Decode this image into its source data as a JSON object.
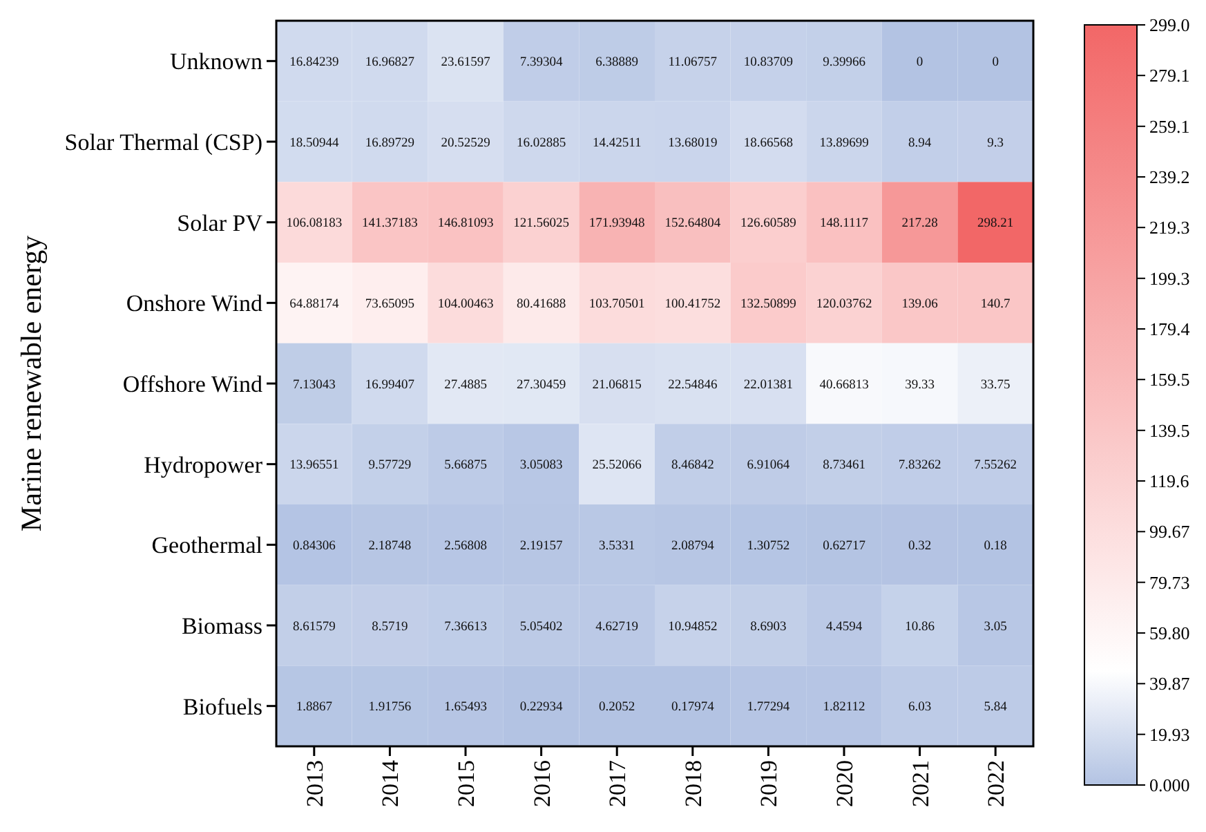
{
  "chart_data": {
    "type": "heatmap",
    "ylabel": "Marine renewable energy",
    "categories": [
      "2013",
      "2014",
      "2015",
      "2016",
      "2017",
      "2018",
      "2019",
      "2020",
      "2021",
      "2022"
    ],
    "y_categories": [
      "Unknown",
      "Solar Thermal (CSP)",
      "Solar PV",
      "Onshore Wind",
      "Offshore Wind",
      "Hydropower",
      "Geothermal",
      "Biomass",
      "Biofuels"
    ],
    "cells": [
      [
        16.84239,
        16.96827,
        23.61597,
        7.39304,
        6.38889,
        11.06757,
        10.83709,
        9.39966,
        0,
        0
      ],
      [
        18.50944,
        16.89729,
        20.52529,
        16.02885,
        14.42511,
        13.68019,
        18.66568,
        13.89699,
        8.94,
        9.3
      ],
      [
        106.08183,
        141.37183,
        146.81093,
        121.56025,
        171.93948,
        152.64804,
        126.60589,
        148.1117,
        217.28,
        298.21
      ],
      [
        64.88174,
        73.65095,
        104.00463,
        80.41688,
        103.70501,
        100.41752,
        132.50899,
        120.03762,
        139.06,
        140.7
      ],
      [
        7.13043,
        16.99407,
        27.4885,
        27.30459,
        21.06815,
        22.54846,
        22.01381,
        40.66813,
        39.33,
        33.75
      ],
      [
        13.96551,
        9.57729,
        5.66875,
        3.05083,
        25.52066,
        8.46842,
        6.91064,
        8.73461,
        7.83262,
        7.55262
      ],
      [
        0.84306,
        2.18748,
        2.56808,
        2.19157,
        3.5331,
        2.08794,
        1.30752,
        0.62717,
        0.32,
        0.18
      ],
      [
        8.61579,
        8.5719,
        7.36613,
        5.05402,
        4.62719,
        10.94852,
        8.6903,
        4.4594,
        10.86,
        3.05
      ],
      [
        1.8867,
        1.91756,
        1.65493,
        0.22934,
        0.2052,
        0.17974,
        1.77294,
        1.82112,
        6.03,
        5.84
      ]
    ],
    "data_labels": true,
    "clim": [
      0,
      299
    ],
    "cticks": [
      {
        "value": 0,
        "label": "0.000"
      },
      19.93,
      39.87,
      {
        "value": 59.8,
        "label": "59.80"
      },
      79.73,
      99.67,
      119.6,
      139.5,
      159.5,
      179.4,
      199.3,
      219.3,
      239.2,
      259.1,
      279.1,
      {
        "value": 299,
        "label": "299.0"
      }
    ]
  }
}
